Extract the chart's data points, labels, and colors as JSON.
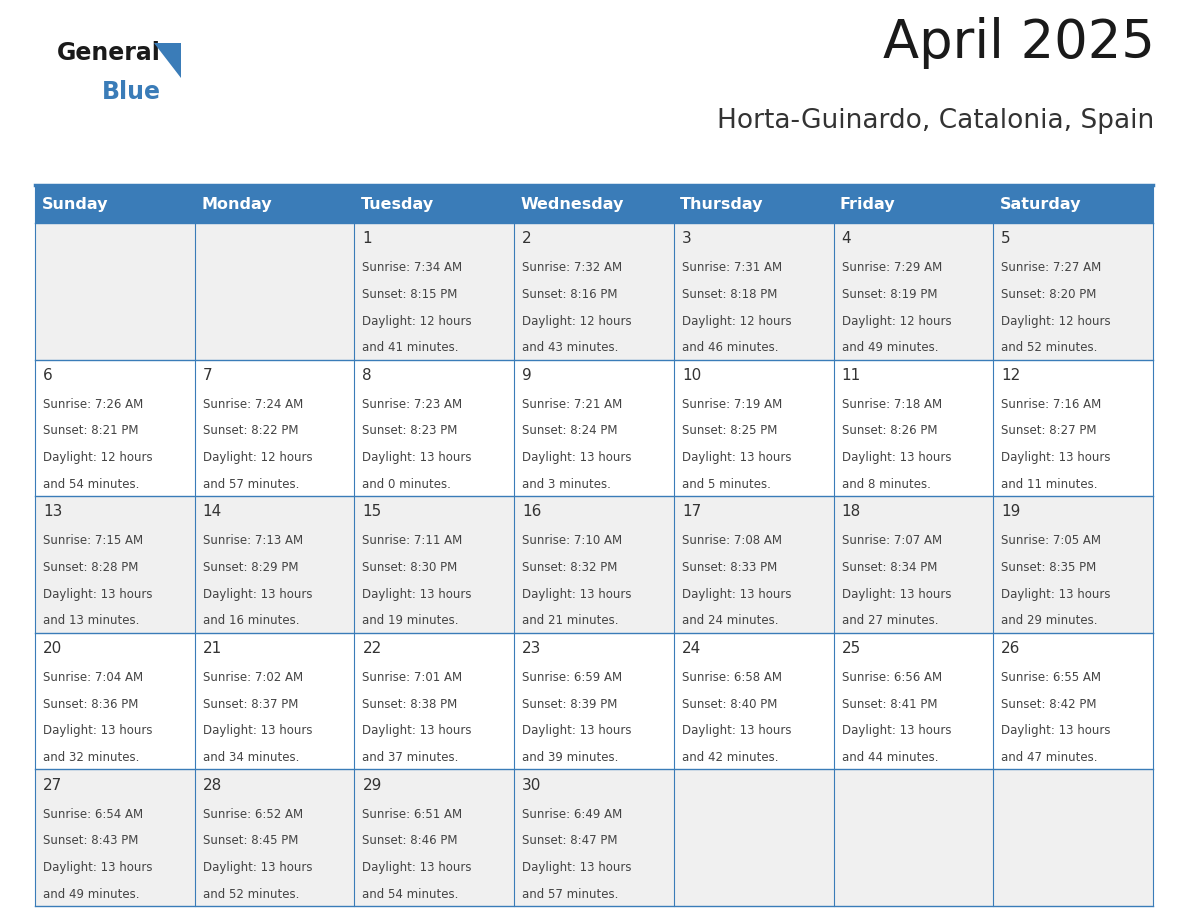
{
  "title": "April 2025",
  "subtitle": "Horta-Guinardo, Catalonia, Spain",
  "header_bg_color": "#3A7CB8",
  "header_text_color": "#FFFFFF",
  "day_names": [
    "Sunday",
    "Monday",
    "Tuesday",
    "Wednesday",
    "Thursday",
    "Friday",
    "Saturday"
  ],
  "cell_bg_even": "#F0F0F0",
  "cell_bg_odd": "#FFFFFF",
  "cell_border_color": "#3A7CB8",
  "day_text_color": "#333333",
  "detail_text_color": "#444444",
  "logo_triangle_color": "#3A7CB8",
  "background_color": "#FFFFFF",
  "title_fontsize": 38,
  "subtitle_fontsize": 19,
  "header_fontsize": 11.5,
  "day_num_fontsize": 11,
  "detail_fontsize": 8.5,
  "days": [
    {
      "day": 1,
      "col": 2,
      "row": 0,
      "sunrise": "7:34 AM",
      "sunset": "8:15 PM",
      "daylight_h": "12 hours",
      "daylight_m": "41 minutes."
    },
    {
      "day": 2,
      "col": 3,
      "row": 0,
      "sunrise": "7:32 AM",
      "sunset": "8:16 PM",
      "daylight_h": "12 hours",
      "daylight_m": "43 minutes."
    },
    {
      "day": 3,
      "col": 4,
      "row": 0,
      "sunrise": "7:31 AM",
      "sunset": "8:18 PM",
      "daylight_h": "12 hours",
      "daylight_m": "46 minutes."
    },
    {
      "day": 4,
      "col": 5,
      "row": 0,
      "sunrise": "7:29 AM",
      "sunset": "8:19 PM",
      "daylight_h": "12 hours",
      "daylight_m": "49 minutes."
    },
    {
      "day": 5,
      "col": 6,
      "row": 0,
      "sunrise": "7:27 AM",
      "sunset": "8:20 PM",
      "daylight_h": "12 hours",
      "daylight_m": "52 minutes."
    },
    {
      "day": 6,
      "col": 0,
      "row": 1,
      "sunrise": "7:26 AM",
      "sunset": "8:21 PM",
      "daylight_h": "12 hours",
      "daylight_m": "54 minutes."
    },
    {
      "day": 7,
      "col": 1,
      "row": 1,
      "sunrise": "7:24 AM",
      "sunset": "8:22 PM",
      "daylight_h": "12 hours",
      "daylight_m": "57 minutes."
    },
    {
      "day": 8,
      "col": 2,
      "row": 1,
      "sunrise": "7:23 AM",
      "sunset": "8:23 PM",
      "daylight_h": "13 hours",
      "daylight_m": "0 minutes."
    },
    {
      "day": 9,
      "col": 3,
      "row": 1,
      "sunrise": "7:21 AM",
      "sunset": "8:24 PM",
      "daylight_h": "13 hours",
      "daylight_m": "3 minutes."
    },
    {
      "day": 10,
      "col": 4,
      "row": 1,
      "sunrise": "7:19 AM",
      "sunset": "8:25 PM",
      "daylight_h": "13 hours",
      "daylight_m": "5 minutes."
    },
    {
      "day": 11,
      "col": 5,
      "row": 1,
      "sunrise": "7:18 AM",
      "sunset": "8:26 PM",
      "daylight_h": "13 hours",
      "daylight_m": "8 minutes."
    },
    {
      "day": 12,
      "col": 6,
      "row": 1,
      "sunrise": "7:16 AM",
      "sunset": "8:27 PM",
      "daylight_h": "13 hours",
      "daylight_m": "11 minutes."
    },
    {
      "day": 13,
      "col": 0,
      "row": 2,
      "sunrise": "7:15 AM",
      "sunset": "8:28 PM",
      "daylight_h": "13 hours",
      "daylight_m": "13 minutes."
    },
    {
      "day": 14,
      "col": 1,
      "row": 2,
      "sunrise": "7:13 AM",
      "sunset": "8:29 PM",
      "daylight_h": "13 hours",
      "daylight_m": "16 minutes."
    },
    {
      "day": 15,
      "col": 2,
      "row": 2,
      "sunrise": "7:11 AM",
      "sunset": "8:30 PM",
      "daylight_h": "13 hours",
      "daylight_m": "19 minutes."
    },
    {
      "day": 16,
      "col": 3,
      "row": 2,
      "sunrise": "7:10 AM",
      "sunset": "8:32 PM",
      "daylight_h": "13 hours",
      "daylight_m": "21 minutes."
    },
    {
      "day": 17,
      "col": 4,
      "row": 2,
      "sunrise": "7:08 AM",
      "sunset": "8:33 PM",
      "daylight_h": "13 hours",
      "daylight_m": "24 minutes."
    },
    {
      "day": 18,
      "col": 5,
      "row": 2,
      "sunrise": "7:07 AM",
      "sunset": "8:34 PM",
      "daylight_h": "13 hours",
      "daylight_m": "27 minutes."
    },
    {
      "day": 19,
      "col": 6,
      "row": 2,
      "sunrise": "7:05 AM",
      "sunset": "8:35 PM",
      "daylight_h": "13 hours",
      "daylight_m": "29 minutes."
    },
    {
      "day": 20,
      "col": 0,
      "row": 3,
      "sunrise": "7:04 AM",
      "sunset": "8:36 PM",
      "daylight_h": "13 hours",
      "daylight_m": "32 minutes."
    },
    {
      "day": 21,
      "col": 1,
      "row": 3,
      "sunrise": "7:02 AM",
      "sunset": "8:37 PM",
      "daylight_h": "13 hours",
      "daylight_m": "34 minutes."
    },
    {
      "day": 22,
      "col": 2,
      "row": 3,
      "sunrise": "7:01 AM",
      "sunset": "8:38 PM",
      "daylight_h": "13 hours",
      "daylight_m": "37 minutes."
    },
    {
      "day": 23,
      "col": 3,
      "row": 3,
      "sunrise": "6:59 AM",
      "sunset": "8:39 PM",
      "daylight_h": "13 hours",
      "daylight_m": "39 minutes."
    },
    {
      "day": 24,
      "col": 4,
      "row": 3,
      "sunrise": "6:58 AM",
      "sunset": "8:40 PM",
      "daylight_h": "13 hours",
      "daylight_m": "42 minutes."
    },
    {
      "day": 25,
      "col": 5,
      "row": 3,
      "sunrise": "6:56 AM",
      "sunset": "8:41 PM",
      "daylight_h": "13 hours",
      "daylight_m": "44 minutes."
    },
    {
      "day": 26,
      "col": 6,
      "row": 3,
      "sunrise": "6:55 AM",
      "sunset": "8:42 PM",
      "daylight_h": "13 hours",
      "daylight_m": "47 minutes."
    },
    {
      "day": 27,
      "col": 0,
      "row": 4,
      "sunrise": "6:54 AM",
      "sunset": "8:43 PM",
      "daylight_h": "13 hours",
      "daylight_m": "49 minutes."
    },
    {
      "day": 28,
      "col": 1,
      "row": 4,
      "sunrise": "6:52 AM",
      "sunset": "8:45 PM",
      "daylight_h": "13 hours",
      "daylight_m": "52 minutes."
    },
    {
      "day": 29,
      "col": 2,
      "row": 4,
      "sunrise": "6:51 AM",
      "sunset": "8:46 PM",
      "daylight_h": "13 hours",
      "daylight_m": "54 minutes."
    },
    {
      "day": 30,
      "col": 3,
      "row": 4,
      "sunrise": "6:49 AM",
      "sunset": "8:47 PM",
      "daylight_h": "13 hours",
      "daylight_m": "57 minutes."
    }
  ],
  "num_rows": 5,
  "num_cols": 7
}
